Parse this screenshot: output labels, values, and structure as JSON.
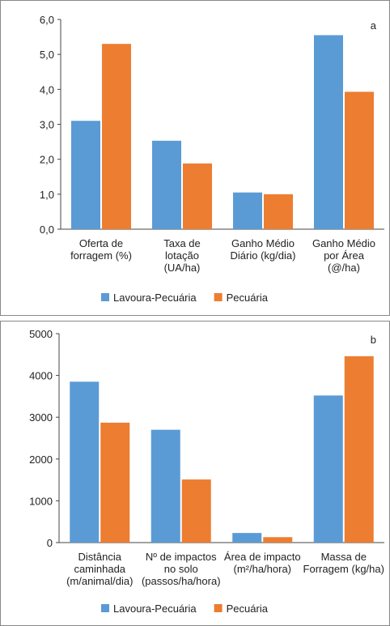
{
  "chart_data": [
    {
      "type": "bar",
      "panel_label": "a",
      "categories": [
        "Oferta de\nforragem (%)",
        "Taxa de\nlotação\n(UA/ha)",
        "Ganho Médio\nDiário (kg/dia)",
        "Ganho Médio\npor Área\n(@/ha)"
      ],
      "series": [
        {
          "name": "Lavoura-Pecuária",
          "color": "#5b9bd5",
          "values": [
            3.1,
            2.53,
            1.05,
            5.55
          ]
        },
        {
          "name": "Pecuária",
          "color": "#ed7d31",
          "values": [
            5.3,
            1.88,
            1.0,
            3.93
          ]
        }
      ],
      "ylim": [
        0,
        6
      ],
      "yticks": [
        {
          "value": 0,
          "label": "0,0"
        },
        {
          "value": 1,
          "label": "1,0"
        },
        {
          "value": 2,
          "label": "2,0"
        },
        {
          "value": 3,
          "label": "3,0"
        },
        {
          "value": 4,
          "label": "4,0"
        },
        {
          "value": 5,
          "label": "5,0"
        },
        {
          "value": 6,
          "label": "6,0"
        }
      ],
      "legend": "bottom"
    },
    {
      "type": "bar",
      "panel_label": "b",
      "categories": [
        "Distância\ncaminhada\n(m/animal/dia)",
        "Nº de impactos\nno solo\n(passos/ha/hora)",
        "Área de impacto\n(m²/ha/hora)",
        "Massa de\nForragem (kg/ha)"
      ],
      "series": [
        {
          "name": "Lavoura-Pecuária",
          "color": "#5b9bd5",
          "values": [
            3850,
            2700,
            230,
            3520
          ]
        },
        {
          "name": "Pecuária",
          "color": "#ed7d31",
          "values": [
            2870,
            1510,
            130,
            4460
          ]
        }
      ],
      "ylim": [
        0,
        5000
      ],
      "yticks": [
        0,
        1000,
        2000,
        3000,
        4000,
        5000
      ],
      "legend": "bottom"
    }
  ]
}
